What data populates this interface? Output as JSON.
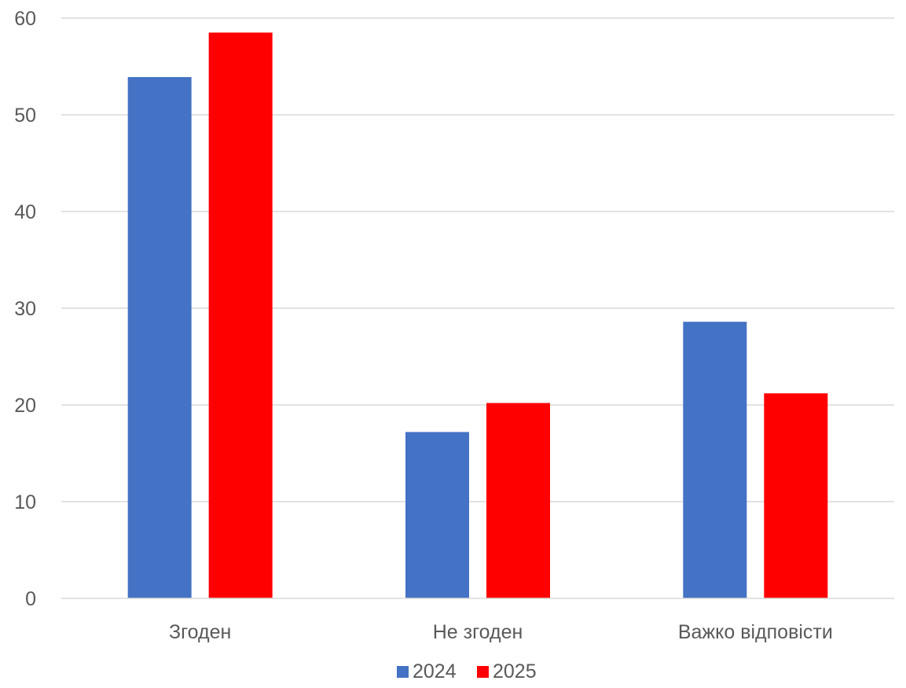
{
  "chart_data": {
    "type": "bar",
    "title": "",
    "xlabel": "",
    "ylabel": "",
    "categories": [
      "Згоден",
      "Не згоден",
      "Важко відповісти"
    ],
    "series": [
      {
        "name": "2024",
        "color": "#4472C4",
        "values": [
          53.9,
          17.2,
          28.6
        ]
      },
      {
        "name": "2025",
        "color": "#FF0000",
        "values": [
          58.5,
          20.2,
          21.2
        ]
      }
    ],
    "ylim": [
      0,
      60
    ],
    "yticks": [
      0,
      10,
      20,
      30,
      40,
      50,
      60
    ],
    "grid": true,
    "gridline_color": "#D9D9D9",
    "legend_position": "bottom"
  }
}
